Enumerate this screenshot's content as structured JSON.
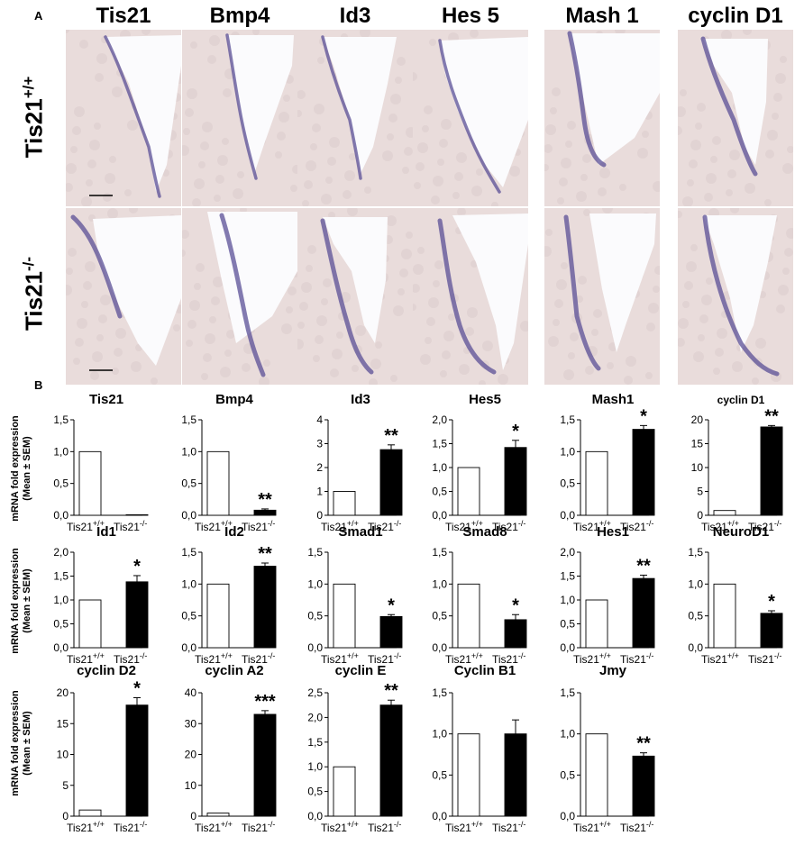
{
  "panel_a": {
    "letter": "A",
    "columns": [
      "Tis21",
      "Bmp4",
      "Id3",
      "Hes 5",
      "Mash 1",
      "cyclin D1"
    ],
    "rows": [
      {
        "base": "Tis21",
        "sup": "+/+"
      },
      {
        "base": "Tis21",
        "sup": "-/-"
      }
    ]
  },
  "panel_b": {
    "letter": "B",
    "ylabel_line1": "mRNA fold expression",
    "ylabel_line2": "(Mean ± SEM)",
    "xlabel_wt": "Tis21",
    "xlabel_wt_sup": "+/+",
    "xlabel_ko": "Tis21",
    "xlabel_ko_sup": "-/-"
  },
  "colors": {
    "wt_bar": "#ffffff",
    "ko_bar": "#000000",
    "stain": "#5a4f96",
    "tissue": "#e9dada"
  },
  "chart_data": [
    {
      "type": "bar",
      "title": "Tis21",
      "categories": [
        "Tis21+/+",
        "Tis21-/-"
      ],
      "values": [
        1.0,
        0.0
      ],
      "errors": [
        0,
        0
      ],
      "ylim": [
        0,
        1.5
      ],
      "ticks": [
        "0,0",
        "0,5",
        "1,0",
        "1,5"
      ],
      "tick_values": [
        0,
        0.5,
        1.0,
        1.5
      ],
      "sig": ""
    },
    {
      "type": "bar",
      "title": "Bmp4",
      "categories": [
        "Tis21+/+",
        "Tis21-/-"
      ],
      "values": [
        1.0,
        0.08
      ],
      "errors": [
        0,
        0.02
      ],
      "ylim": [
        0,
        1.5
      ],
      "ticks": [
        "0,0",
        "0,5",
        "1,0",
        "1,5"
      ],
      "tick_values": [
        0,
        0.5,
        1.0,
        1.5
      ],
      "sig": "**"
    },
    {
      "type": "bar",
      "title": "Id3",
      "categories": [
        "Tis21+/+",
        "Tis21-/-"
      ],
      "values": [
        1.0,
        2.75
      ],
      "errors": [
        0,
        0.2
      ],
      "ylim": [
        0,
        4
      ],
      "ticks": [
        "0",
        "1",
        "2",
        "3",
        "4"
      ],
      "tick_values": [
        0,
        1,
        2,
        3,
        4
      ],
      "sig": "**"
    },
    {
      "type": "bar",
      "title": "Hes5",
      "categories": [
        "Tis21+/+",
        "Tis21-/-"
      ],
      "values": [
        1.0,
        1.42
      ],
      "errors": [
        0,
        0.15
      ],
      "ylim": [
        0,
        2.0
      ],
      "ticks": [
        "0,0",
        "0,5",
        "1,0",
        "1,5",
        "2,0"
      ],
      "tick_values": [
        0,
        0.5,
        1.0,
        1.5,
        2.0
      ],
      "sig": "*"
    },
    {
      "type": "bar",
      "title": "Mash1",
      "categories": [
        "Tis21+/+",
        "Tis21-/-"
      ],
      "values": [
        1.0,
        1.35
      ],
      "errors": [
        0,
        0.06
      ],
      "ylim": [
        0,
        1.5
      ],
      "ticks": [
        "0,0",
        "0,5",
        "1,0",
        "1,5"
      ],
      "tick_values": [
        0,
        0.5,
        1.0,
        1.5
      ],
      "sig": "*"
    },
    {
      "type": "bar",
      "title": "cyclin D1",
      "categories": [
        "Tis21+/+",
        "Tis21-/-"
      ],
      "values": [
        1.0,
        18.5
      ],
      "errors": [
        0,
        0.3
      ],
      "ylim": [
        0,
        20
      ],
      "ticks": [
        "0",
        "5",
        "10",
        "15",
        "20"
      ],
      "tick_values": [
        0,
        5,
        10,
        15,
        20
      ],
      "sig": "**"
    },
    {
      "type": "bar",
      "title": "Id1",
      "categories": [
        "Tis21+/+",
        "Tis21-/-"
      ],
      "values": [
        1.0,
        1.38
      ],
      "errors": [
        0,
        0.13
      ],
      "ylim": [
        0,
        2.0
      ],
      "ticks": [
        "0,0",
        "0,5",
        "1,0",
        "1,5",
        "2,0"
      ],
      "tick_values": [
        0,
        0.5,
        1.0,
        1.5,
        2.0
      ],
      "sig": "*"
    },
    {
      "type": "bar",
      "title": "Id2",
      "categories": [
        "Tis21+/+",
        "Tis21-/-"
      ],
      "values": [
        1.0,
        1.28
      ],
      "errors": [
        0,
        0.05
      ],
      "ylim": [
        0,
        1.5
      ],
      "ticks": [
        "0,0",
        "0,5",
        "1,0",
        "1,5"
      ],
      "tick_values": [
        0,
        0.5,
        1.0,
        1.5
      ],
      "sig": "**"
    },
    {
      "type": "bar",
      "title": "Smad1",
      "categories": [
        "Tis21+/+",
        "Tis21-/-"
      ],
      "values": [
        1.0,
        0.49
      ],
      "errors": [
        0,
        0.03
      ],
      "ylim": [
        0,
        1.5
      ],
      "ticks": [
        "0,0",
        "0,5",
        "1,0",
        "1,5"
      ],
      "tick_values": [
        0,
        0.5,
        1.0,
        1.5
      ],
      "sig": "*"
    },
    {
      "type": "bar",
      "title": "Smad8",
      "categories": [
        "Tis21+/+",
        "Tis21-/-"
      ],
      "values": [
        1.0,
        0.44
      ],
      "errors": [
        0,
        0.08
      ],
      "ylim": [
        0,
        1.5
      ],
      "ticks": [
        "0,0",
        "0,5",
        "1,0",
        "1,5"
      ],
      "tick_values": [
        0,
        0.5,
        1.0,
        1.5
      ],
      "sig": "*"
    },
    {
      "type": "bar",
      "title": "Hes1",
      "categories": [
        "Tis21+/+",
        "Tis21-/-"
      ],
      "values": [
        1.0,
        1.45
      ],
      "errors": [
        0,
        0.07
      ],
      "ylim": [
        0,
        2.0
      ],
      "ticks": [
        "0,0",
        "0,5",
        "1,0",
        "1,5",
        "2,0"
      ],
      "tick_values": [
        0,
        0.5,
        1.0,
        1.5,
        2.0
      ],
      "sig": "**"
    },
    {
      "type": "bar",
      "title": "NeuroD1",
      "categories": [
        "Tis21+/+",
        "Tis21-/-"
      ],
      "values": [
        1.0,
        0.54
      ],
      "errors": [
        0,
        0.04
      ],
      "ylim": [
        0,
        1.5
      ],
      "ticks": [
        "0,0",
        "0,5",
        "1,0",
        "1,5"
      ],
      "tick_values": [
        0,
        0.5,
        1.0,
        1.5
      ],
      "sig": "*"
    },
    {
      "type": "bar",
      "title": "cyclin D2",
      "categories": [
        "Tis21+/+",
        "Tis21-/-"
      ],
      "values": [
        1.0,
        18.0
      ],
      "errors": [
        0,
        1.2
      ],
      "ylim": [
        0,
        20
      ],
      "ticks": [
        "0",
        "5",
        "10",
        "15",
        "20"
      ],
      "tick_values": [
        0,
        5,
        10,
        15,
        20
      ],
      "sig": "*"
    },
    {
      "type": "bar",
      "title": "cyclin A2",
      "categories": [
        "Tis21+/+",
        "Tis21-/-"
      ],
      "values": [
        1.0,
        33.0
      ],
      "errors": [
        0,
        1.2
      ],
      "ylim": [
        0,
        40
      ],
      "ticks": [
        "0",
        "10",
        "20",
        "30",
        "40"
      ],
      "tick_values": [
        0,
        10,
        20,
        30,
        40
      ],
      "sig": "***"
    },
    {
      "type": "bar",
      "title": "cyclin E",
      "categories": [
        "Tis21+/+",
        "Tis21-/-"
      ],
      "values": [
        1.0,
        2.25
      ],
      "errors": [
        0,
        0.1
      ],
      "ylim": [
        0,
        2.5
      ],
      "ticks": [
        "0,0",
        "0,5",
        "1,0",
        "1,5",
        "2,0",
        "2,5"
      ],
      "tick_values": [
        0,
        0.5,
        1.0,
        1.5,
        2.0,
        2.5
      ],
      "sig": "**"
    },
    {
      "type": "bar",
      "title": "Cyclin B1",
      "categories": [
        "Tis21+/+",
        "Tis21-/-"
      ],
      "values": [
        1.0,
        1.0
      ],
      "errors": [
        0,
        0.17
      ],
      "ylim": [
        0,
        1.5
      ],
      "ticks": [
        "0,0",
        "0,5",
        "1,0",
        "1,5"
      ],
      "tick_values": [
        0,
        0.5,
        1.0,
        1.5
      ],
      "sig": ""
    },
    {
      "type": "bar",
      "title": "Jmy",
      "categories": [
        "Tis21+/+",
        "Tis21-/-"
      ],
      "values": [
        1.0,
        0.73
      ],
      "errors": [
        0,
        0.04
      ],
      "ylim": [
        0,
        1.5
      ],
      "ticks": [
        "0,0",
        "0,5",
        "1,0",
        "1,5"
      ],
      "tick_values": [
        0,
        0.5,
        1.0,
        1.5
      ],
      "sig": "**"
    }
  ]
}
